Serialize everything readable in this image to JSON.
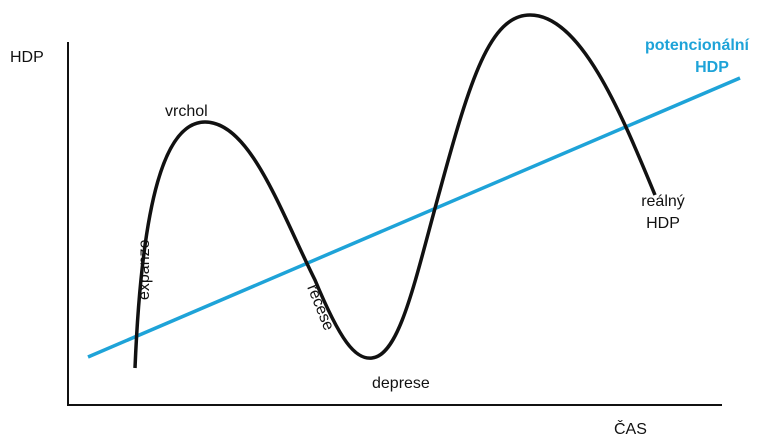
{
  "axes": {
    "y_label": "HDP",
    "x_label": "ČAS"
  },
  "phases": {
    "peak": "vrchol",
    "expansion": "expanze",
    "recession": "recese",
    "depression": "deprese"
  },
  "lines": {
    "potential": [
      "potencionální",
      "HDP"
    ],
    "real": [
      "reálný",
      "HDP"
    ]
  }
}
